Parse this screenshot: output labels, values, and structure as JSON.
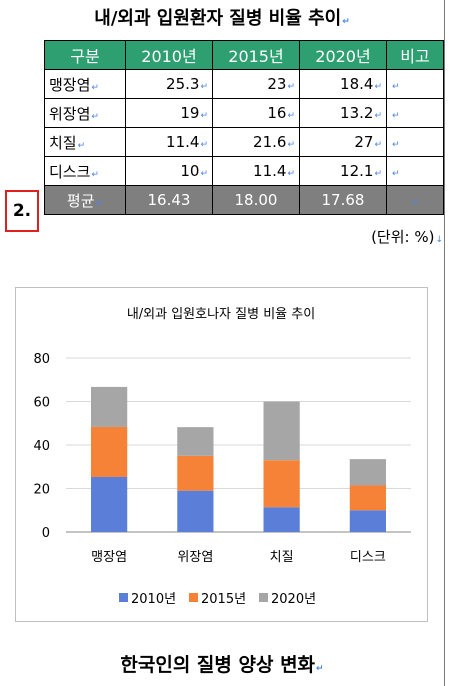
{
  "doc_title": "내/외과 입원환자 질병 비율 추이",
  "table": {
    "headers": [
      "구분",
      "2010년",
      "2015년",
      "2020년",
      "비고"
    ],
    "rows": [
      {
        "label": "맹장염",
        "v2010": "25.3",
        "v2015": "23",
        "v2020": "18.4",
        "note": ""
      },
      {
        "label": "위장염",
        "v2010": "19",
        "v2015": "16",
        "v2020": "13.2",
        "note": ""
      },
      {
        "label": "치질",
        "v2010": "11.4",
        "v2015": "21.6",
        "v2020": "27",
        "note": ""
      },
      {
        "label": "디스크",
        "v2010": "10",
        "v2015": "11.4",
        "v2020": "12.1",
        "note": ""
      }
    ],
    "average": {
      "label": "평균",
      "v2010": "16.43",
      "v2015": "18.00",
      "v2020": "17.68",
      "note": ""
    }
  },
  "step_label": "2.",
  "unit": "(단위: %)",
  "chart_data": {
    "type": "bar",
    "stacked": true,
    "title": "내/외과 입원호나자 질병 비율 추이",
    "categories": [
      "맹장염",
      "위장염",
      "치질",
      "디스크"
    ],
    "series": [
      {
        "name": "2010년",
        "color": "#5b7ed8",
        "values": [
          25.3,
          19,
          11.4,
          10
        ]
      },
      {
        "name": "2015년",
        "color": "#f58236",
        "values": [
          23,
          16,
          21.6,
          11.4
        ]
      },
      {
        "name": "2020년",
        "color": "#a6a6a6",
        "values": [
          18.4,
          13.2,
          27,
          12.1
        ]
      }
    ],
    "ylim": [
      0,
      80
    ],
    "yticks": [
      0,
      20,
      40,
      60,
      80
    ],
    "grid": true,
    "legend": "bottom"
  },
  "doc_subtitle": "한국인의 질병 양상 변화"
}
